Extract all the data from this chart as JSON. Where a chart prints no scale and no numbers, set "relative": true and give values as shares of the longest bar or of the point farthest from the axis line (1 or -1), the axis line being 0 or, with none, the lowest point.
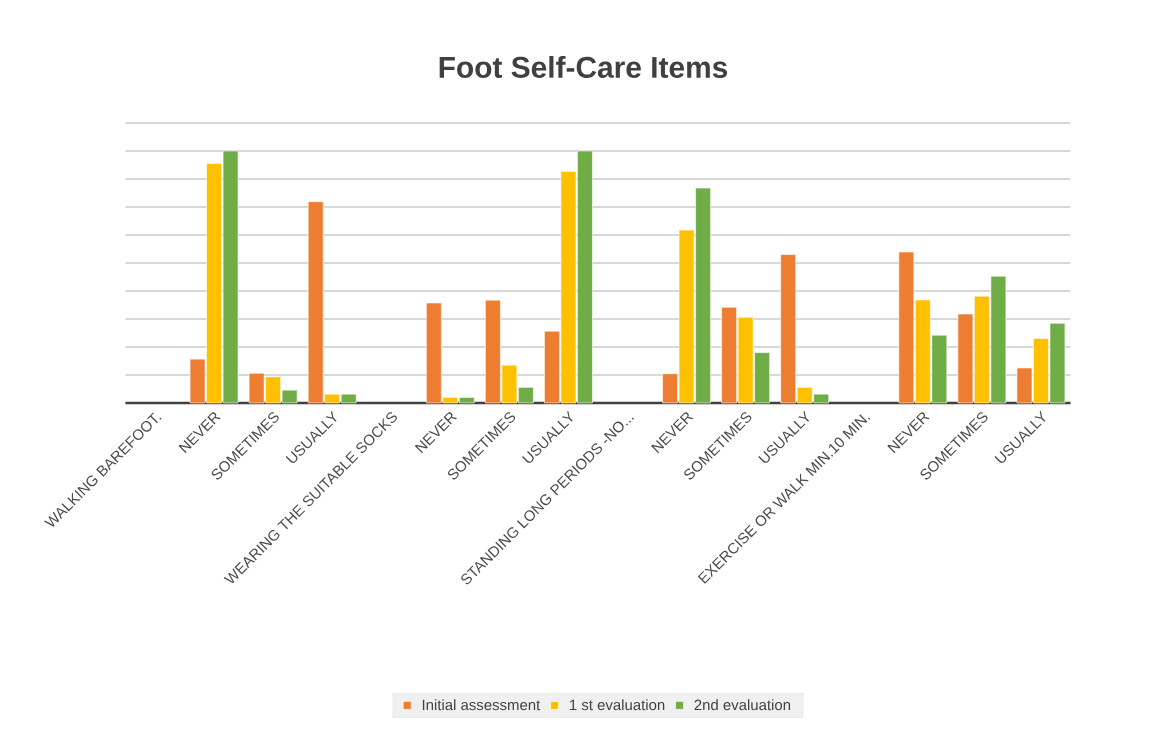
{
  "chart_data": {
    "type": "bar",
    "title": "Foot Self-Care Items",
    "relative": true,
    "grid": "y",
    "legend": "bottom",
    "categories": [
      "WALKING BAREFOOT.",
      "NEVER",
      "SOMETIMES",
      "USUALLY",
      "WEARING THE SUITABLE SOCKS",
      "NEVER",
      "SOMETIMES",
      "USUALLY",
      "STANDING LONG PERIODS -NO...",
      "NEVER",
      "SOMETIMES",
      "USUALLY",
      "EXERCISE OR WALK MIN.10 MIN.",
      "NEVER",
      "SOMETIMES",
      "USUALLY"
    ],
    "series": [
      {
        "name": "Initial assessment",
        "color": "#ed7d31",
        "values": [
          null,
          0.174,
          0.118,
          0.799,
          null,
          0.397,
          0.408,
          0.285,
          null,
          0.116,
          0.38,
          0.589,
          null,
          0.599,
          0.353,
          0.139
        ]
      },
      {
        "name": "1 st evaluation",
        "color": "#ffc000",
        "values": [
          null,
          0.95,
          0.104,
          0.035,
          null,
          0.022,
          0.15,
          0.919,
          null,
          0.686,
          0.34,
          0.062,
          null,
          0.409,
          0.424,
          0.256
        ]
      },
      {
        "name": "2nd evaluation",
        "color": "#70ad47",
        "values": [
          null,
          1,
          0.051,
          0.035,
          null,
          0.022,
          0.062,
          1,
          null,
          0.853,
          0.2,
          0.035,
          null,
          0.269,
          0.503,
          0.316
        ]
      }
    ]
  }
}
